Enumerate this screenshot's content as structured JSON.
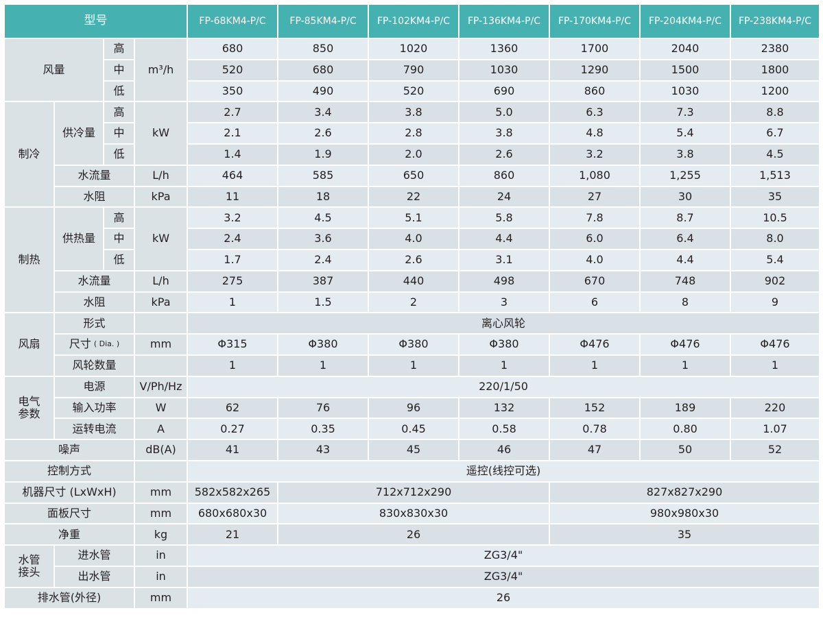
{
  "header": {
    "label": "型号",
    "models": [
      "FP-68KM4-P/C",
      "FP-85KM4-P/C",
      "FP-102KM4-P/C",
      "FP-136KM4-P/C",
      "FP-170KM4-P/C",
      "FP-204KM4-P/C",
      "FP-238KM4-P/C"
    ]
  },
  "levels": [
    "高",
    "中",
    "低"
  ],
  "air_flow": {
    "label": "风量",
    "unit": "m³/h",
    "values": [
      [
        "680",
        "850",
        "1020",
        "1360",
        "1700",
        "2040",
        "2380"
      ],
      [
        "520",
        "680",
        "790",
        "1030",
        "1290",
        "1500",
        "1800"
      ],
      [
        "350",
        "490",
        "520",
        "690",
        "860",
        "1030",
        "1200"
      ]
    ]
  },
  "cooling": {
    "label": "制冷",
    "capacity": {
      "label": "供冷量",
      "unit": "kW",
      "values": [
        [
          "2.7",
          "3.4",
          "3.8",
          "5.0",
          "6.3",
          "7.3",
          "8.8"
        ],
        [
          "2.1",
          "2.6",
          "2.8",
          "3.8",
          "4.8",
          "5.4",
          "6.7"
        ],
        [
          "1.4",
          "1.9",
          "2.0",
          "2.6",
          "3.2",
          "3.8",
          "4.5"
        ]
      ]
    },
    "water_flow": {
      "label": "水流量",
      "unit": "L/h",
      "values": [
        "464",
        "585",
        "650",
        "860",
        "1,080",
        "1,255",
        "1,513"
      ]
    },
    "water_resistance": {
      "label": "水阻",
      "unit": "kPa",
      "values": [
        "11",
        "18",
        "22",
        "24",
        "27",
        "30",
        "35"
      ]
    }
  },
  "heating": {
    "label": "制热",
    "capacity": {
      "label": "供热量",
      "unit": "kW",
      "values": [
        [
          "3.2",
          "4.5",
          "5.1",
          "5.8",
          "7.8",
          "8.7",
          "10.5"
        ],
        [
          "2.4",
          "3.6",
          "4.0",
          "4.4",
          "6.0",
          "6.4",
          "8.0"
        ],
        [
          "1.7",
          "2.4",
          "2.6",
          "3.1",
          "4.0",
          "4.4",
          "5.4"
        ]
      ]
    },
    "water_flow": {
      "label": "水流量",
      "unit": "L/h",
      "values": [
        "275",
        "387",
        "440",
        "498",
        "670",
        "748",
        "902"
      ]
    },
    "water_resistance": {
      "label": "水阻",
      "unit": "kPa",
      "values": [
        "1",
        "1.5",
        "2",
        "3",
        "6",
        "8",
        "9"
      ]
    }
  },
  "fan": {
    "label": "风扇",
    "type": {
      "label": "形式",
      "value": "离心风轮"
    },
    "size": {
      "label": "尺寸",
      "note": "( Dia. )",
      "unit": "mm",
      "values": [
        "Φ315",
        "Φ380",
        "Φ380",
        "Φ380",
        "Φ476",
        "Φ476",
        "Φ476"
      ]
    },
    "count": {
      "label": "风轮数量",
      "values": [
        "1",
        "1",
        "1",
        "1",
        "1",
        "1",
        "1"
      ]
    }
  },
  "electrical": {
    "label_lines": [
      "电气",
      "参数"
    ],
    "power_supply": {
      "label": "电源",
      "unit": "V/Ph/Hz",
      "value": "220/1/50"
    },
    "input_power": {
      "label": "输入功率",
      "unit": "W",
      "values": [
        "62",
        "76",
        "96",
        "132",
        "152",
        "189",
        "220"
      ]
    },
    "current": {
      "label": "运转电流",
      "unit": "A",
      "values": [
        "0.27",
        "0.35",
        "0.45",
        "0.58",
        "0.78",
        "0.80",
        "1.07"
      ]
    }
  },
  "noise": {
    "label": "噪声",
    "unit": "dB(A)",
    "values": [
      "41",
      "43",
      "45",
      "46",
      "47",
      "50",
      "52"
    ]
  },
  "control": {
    "label": "控制方式",
    "value": "遥控(线控可选)"
  },
  "unit_size": {
    "label": "机器尺寸 (LxWxH)",
    "unit": "mm",
    "values": [
      "582x582x265",
      "712x712x290",
      "827x827x290"
    ]
  },
  "panel_size": {
    "label": "面板尺寸",
    "unit": "mm",
    "values": [
      "680x680x30",
      "830x830x30",
      "980x980x30"
    ]
  },
  "net_weight": {
    "label": "净重",
    "unit": "kg",
    "values": [
      "21",
      "26",
      "35"
    ]
  },
  "water_pipe": {
    "label_lines": [
      "水管",
      "接头"
    ],
    "inlet": {
      "label": "进水管",
      "unit": "in",
      "value": "ZG3/4\""
    },
    "outlet": {
      "label": "出水管",
      "unit": "in",
      "value": "ZG3/4\""
    }
  },
  "drain": {
    "label": "排水管(外径)",
    "unit": "mm",
    "value": "26"
  },
  "colors": {
    "header": "#45b1b1",
    "label_cell": "#dbe2e6",
    "row_light": "#e4ecf2",
    "row_dark": "#d9e1e6"
  }
}
